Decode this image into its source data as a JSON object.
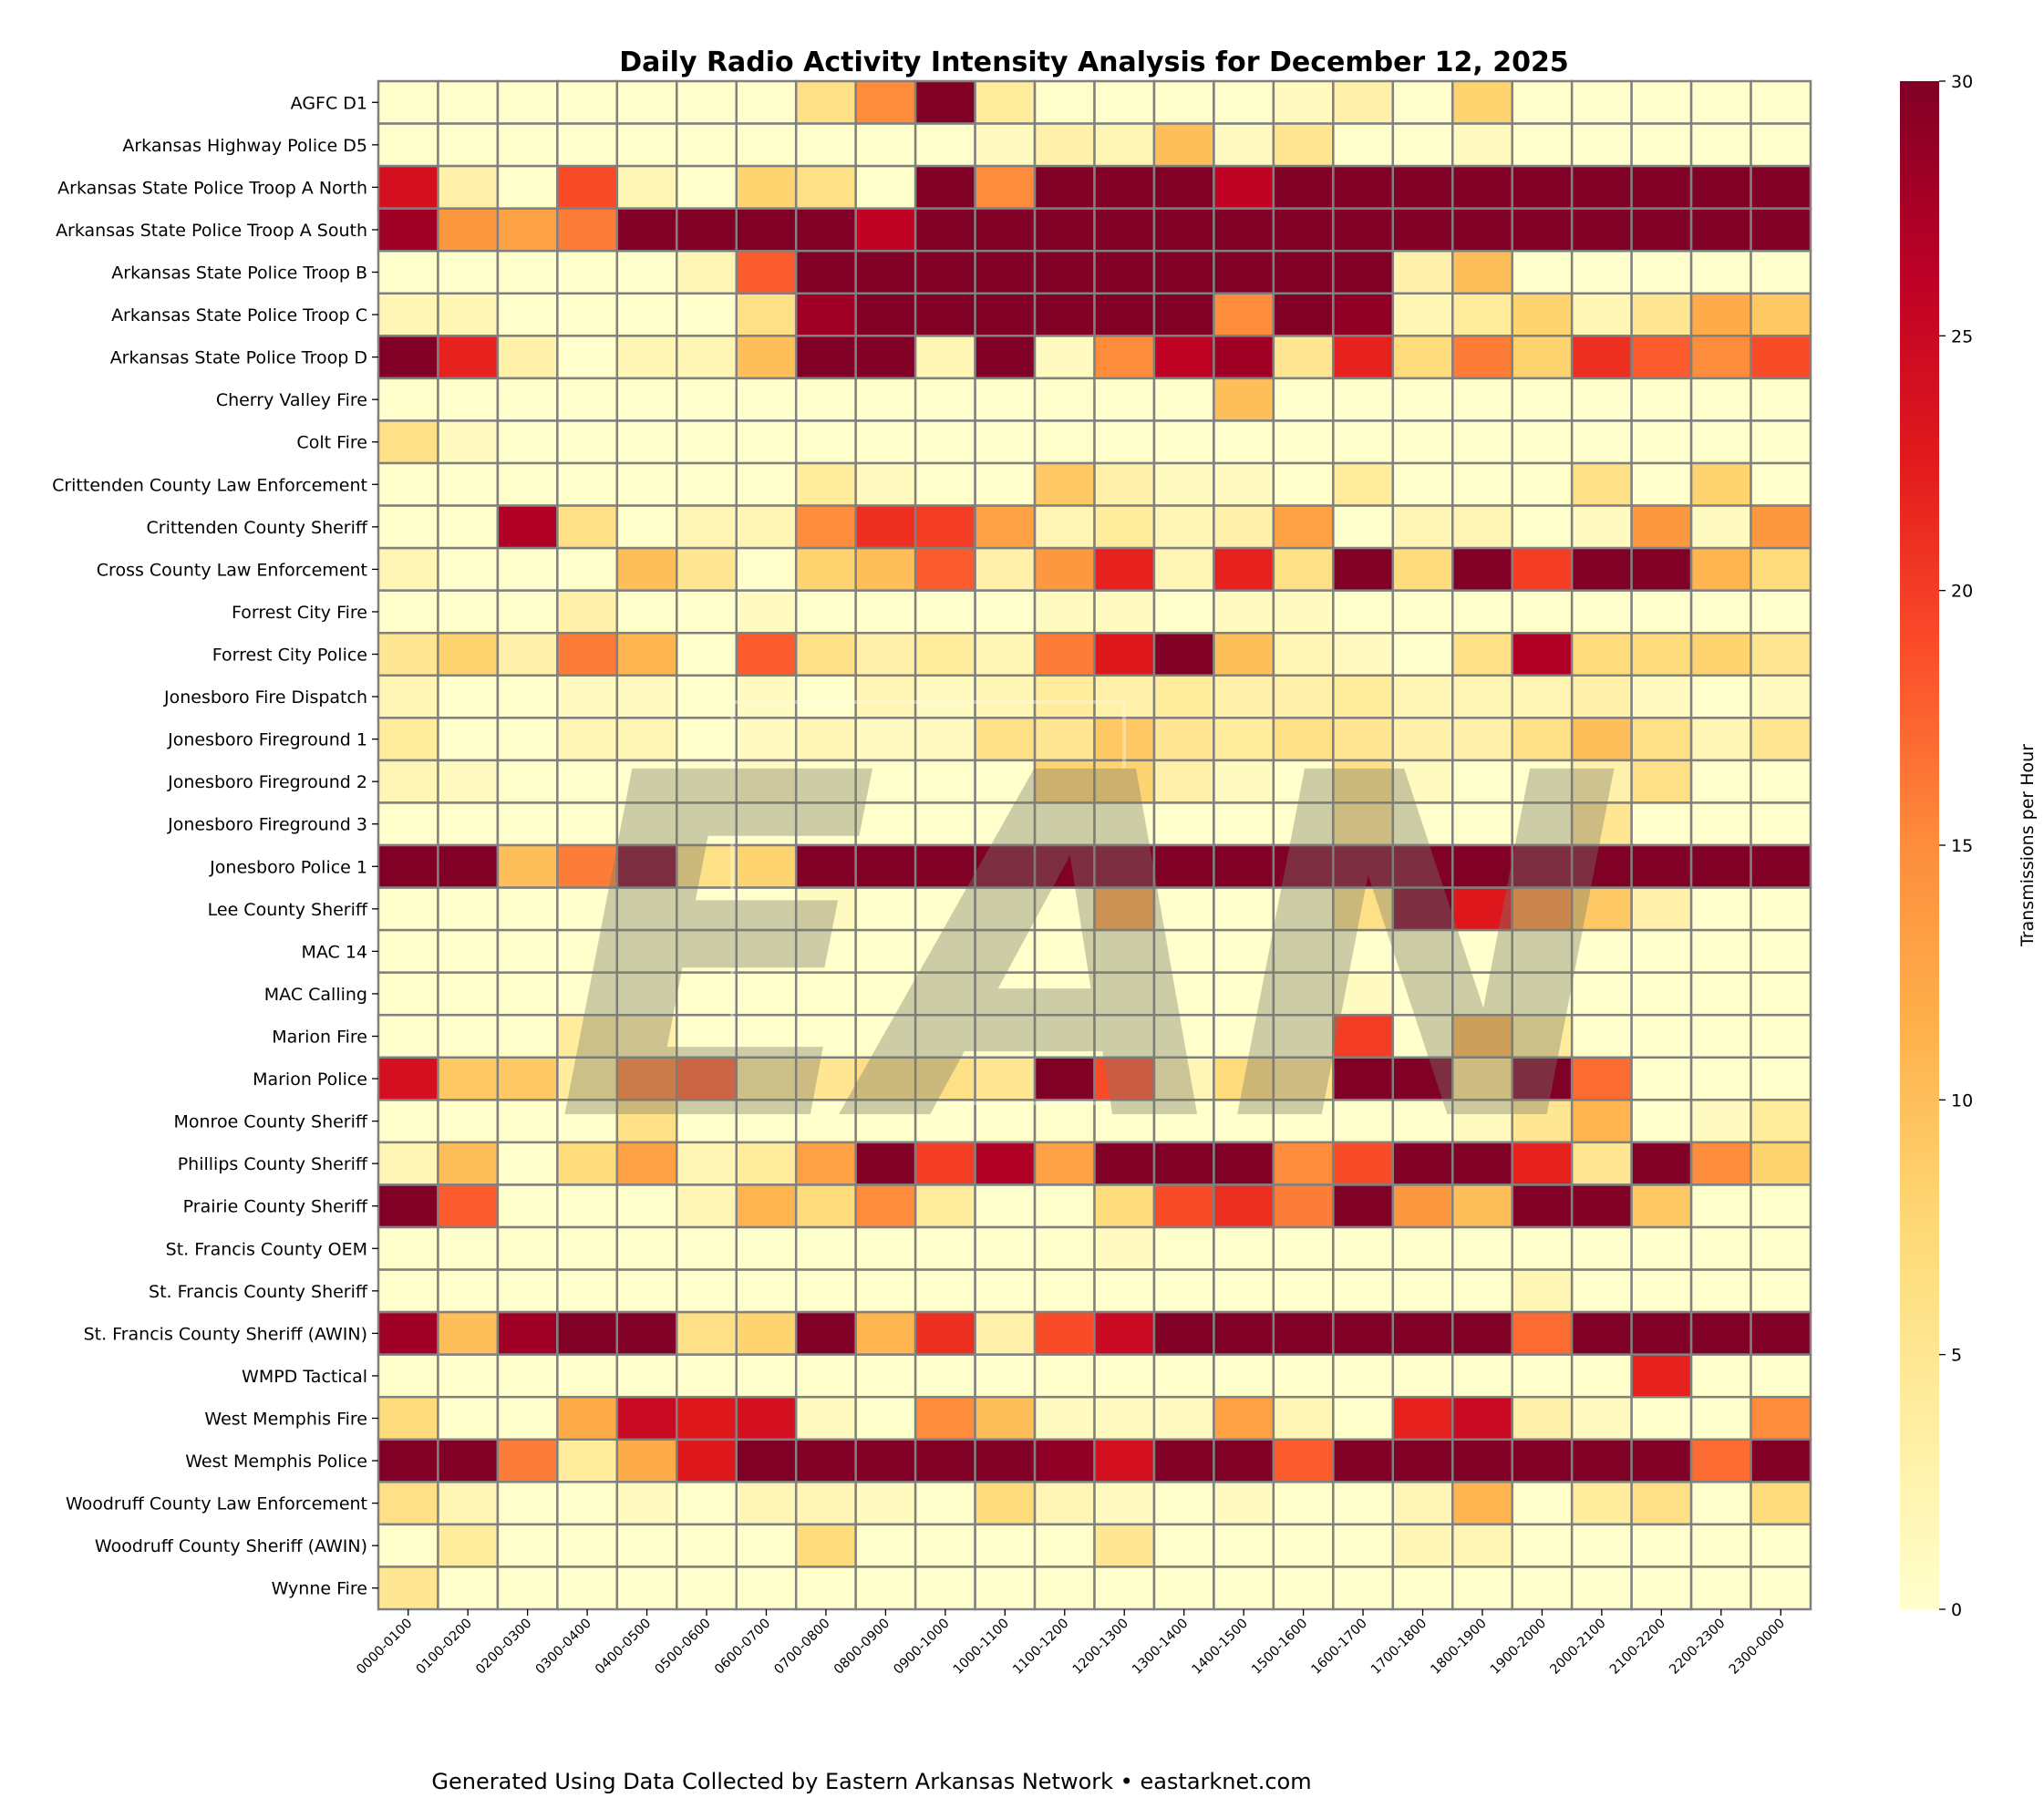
{
  "chart_data": {
    "type": "heatmap",
    "title": "Daily Radio Activity Intensity Analysis for December 12, 2025",
    "xlabel": "",
    "ylabel": "",
    "colorbar_label": "Transmissions per Hour",
    "colorbar_range": [
      0,
      30
    ],
    "colorbar_ticks": [
      "0",
      "5",
      "10",
      "15",
      "20",
      "25",
      "30"
    ],
    "colormap": [
      "#ffffcc",
      "#ffeda0",
      "#fed976",
      "#feb24c",
      "#fd8d3c",
      "#fc4e2a",
      "#e31a1c",
      "#bd0026",
      "#800026"
    ],
    "grid_color": "#808080",
    "x": [
      "0000-0100",
      "0100-0200",
      "0200-0300",
      "0300-0400",
      "0400-0500",
      "0500-0600",
      "0600-0700",
      "0700-0800",
      "0800-0900",
      "0900-1000",
      "1000-1100",
      "1100-1200",
      "1200-1300",
      "1300-1400",
      "1400-1500",
      "1500-1600",
      "1600-1700",
      "1700-1800",
      "1800-1900",
      "1900-2000",
      "2000-2100",
      "2100-2200",
      "2200-2300",
      "2300-0000"
    ],
    "y": [
      "AGFC D1",
      "Arkansas Highway Police D5",
      "Arkansas State Police Troop A North",
      "Arkansas State Police Troop A South",
      "Arkansas State Police Troop B",
      "Arkansas State Police Troop C",
      "Arkansas State Police Troop D",
      "Cherry Valley Fire",
      "Colt Fire",
      "Crittenden County Law Enforcement",
      "Crittenden County Sheriff",
      "Cross County Law Enforcement",
      "Forrest City Fire",
      "Forrest City Police",
      "Jonesboro Fire Dispatch",
      "Jonesboro Fireground 1",
      "Jonesboro Fireground 2",
      "Jonesboro Fireground 3",
      "Jonesboro Police 1",
      "Lee County Sheriff",
      "MAC 14",
      "MAC Calling",
      "Marion Fire",
      "Marion Police",
      "Monroe County Sheriff",
      "Phillips County Sheriff",
      "Prairie County Sheriff",
      "St. Francis County OEM",
      "St. Francis County Sheriff",
      "St. Francis County Sheriff (AWIN)",
      "WMPD Tactical",
      "West Memphis Fire",
      "West Memphis Police",
      "Woodruff County Law Enforcement",
      "Woodruff County Sheriff (AWIN)",
      "Wynne Fire"
    ],
    "values": [
      [
        0,
        0,
        0,
        0,
        0,
        0,
        0,
        6,
        15,
        30,
        4,
        0,
        0,
        0,
        0,
        1,
        3,
        0,
        8,
        0,
        0,
        0,
        0,
        0
      ],
      [
        0,
        0,
        0,
        0,
        0,
        0,
        0,
        0,
        0,
        0,
        1,
        3,
        2,
        10,
        1,
        5,
        0,
        0,
        1,
        0,
        0,
        0,
        0,
        0
      ],
      [
        24,
        3,
        0,
        19,
        2,
        0,
        8,
        6,
        0,
        30,
        15,
        30,
        30,
        30,
        26,
        30,
        30,
        30,
        30,
        30,
        30,
        30,
        30,
        30
      ],
      [
        28,
        14,
        13,
        16,
        30,
        30,
        30,
        30,
        26,
        30,
        30,
        30,
        30,
        30,
        30,
        30,
        30,
        30,
        30,
        30,
        30,
        30,
        30,
        30
      ],
      [
        0,
        0,
        0,
        0,
        0,
        2,
        18,
        30,
        30,
        30,
        30,
        30,
        30,
        30,
        30,
        30,
        30,
        3,
        10,
        0,
        0,
        0,
        0,
        0
      ],
      [
        2,
        2,
        0,
        0,
        0,
        0,
        6,
        28,
        30,
        30,
        30,
        30,
        30,
        30,
        15,
        30,
        29,
        2,
        4,
        8,
        2,
        5,
        12,
        9
      ],
      [
        30,
        22,
        3,
        0,
        2,
        2,
        10,
        30,
        30,
        2,
        30,
        1,
        15,
        26,
        28,
        5,
        22,
        7,
        16,
        8,
        21,
        18,
        15,
        19
      ],
      [
        0,
        0,
        0,
        0,
        0,
        0,
        0,
        0,
        0,
        0,
        0,
        0,
        0,
        0,
        10,
        0,
        0,
        0,
        0,
        0,
        0,
        0,
        0,
        0
      ],
      [
        6,
        1,
        0,
        0,
        0,
        0,
        0,
        0,
        0,
        0,
        0,
        0,
        0,
        0,
        0,
        0,
        0,
        0,
        0,
        0,
        0,
        0,
        0,
        0
      ],
      [
        0,
        0,
        0,
        0,
        0,
        0,
        0,
        4,
        1,
        0,
        0,
        9,
        3,
        1,
        1,
        0,
        4,
        0,
        0,
        0,
        6,
        0,
        8,
        0
      ],
      [
        0,
        0,
        27,
        6,
        0,
        2,
        2,
        15,
        21,
        20,
        13,
        2,
        4,
        2,
        3,
        13,
        0,
        2,
        2,
        0,
        1,
        14,
        1,
        14
      ],
      [
        2,
        0,
        0,
        0,
        10,
        5,
        0,
        8,
        10,
        18,
        3,
        14,
        22,
        2,
        22,
        6,
        30,
        7,
        30,
        20,
        30,
        30,
        11,
        7
      ],
      [
        0,
        0,
        0,
        3,
        0,
        0,
        1,
        0,
        0,
        0,
        0,
        1,
        1,
        0,
        1,
        1,
        0,
        0,
        0,
        0,
        0,
        0,
        0,
        0
      ],
      [
        5,
        8,
        3,
        16,
        11,
        0,
        18,
        6,
        3,
        4,
        2,
        16,
        23,
        30,
        10,
        2,
        1,
        0,
        6,
        27,
        7,
        7,
        8,
        5
      ],
      [
        2,
        0,
        0,
        1,
        1,
        0,
        1,
        0,
        2,
        1,
        2,
        4,
        3,
        4,
        3,
        3,
        4,
        2,
        2,
        2,
        3,
        1,
        0,
        1
      ],
      [
        4,
        0,
        0,
        2,
        2,
        0,
        1,
        2,
        1,
        1,
        6,
        5,
        9,
        5,
        4,
        6,
        5,
        3,
        3,
        6,
        10,
        6,
        2,
        5
      ],
      [
        2,
        1,
        0,
        0,
        0,
        0,
        1,
        0,
        0,
        0,
        0,
        8,
        8,
        3,
        1,
        0,
        6,
        1,
        0,
        0,
        3,
        6,
        0,
        0
      ],
      [
        0,
        0,
        0,
        0,
        0,
        0,
        0,
        0,
        0,
        0,
        0,
        0,
        0,
        0,
        0,
        0,
        5,
        0,
        0,
        0,
        5,
        0,
        0,
        0
      ],
      [
        30,
        30,
        10,
        16,
        30,
        6,
        8,
        30,
        30,
        30,
        30,
        30,
        30,
        30,
        30,
        30,
        30,
        30,
        30,
        30,
        30,
        30,
        30,
        30
      ],
      [
        0,
        0,
        0,
        0,
        0,
        0,
        0,
        1,
        0,
        0,
        0,
        0,
        13,
        0,
        0,
        0,
        6,
        30,
        23,
        15,
        9,
        3,
        0,
        0
      ],
      [
        0,
        0,
        0,
        0,
        0,
        0,
        0,
        0,
        0,
        0,
        0,
        0,
        0,
        0,
        0,
        0,
        0,
        0,
        0,
        0,
        0,
        0,
        0,
        0
      ],
      [
        0,
        0,
        0,
        0,
        0,
        0,
        0,
        0,
        0,
        0,
        0,
        0,
        0,
        0,
        0,
        0,
        1,
        0,
        0,
        0,
        0,
        0,
        0,
        0
      ],
      [
        0,
        0,
        0,
        4,
        3,
        0,
        0,
        0,
        0,
        0,
        0,
        0,
        0,
        0,
        0,
        0,
        20,
        0,
        11,
        4,
        0,
        0,
        0,
        0
      ],
      [
        24,
        9,
        9,
        4,
        16,
        18,
        4,
        5,
        6,
        6,
        5,
        30,
        19,
        2,
        7,
        5,
        30,
        30,
        5,
        30,
        17,
        0,
        0,
        0
      ],
      [
        0,
        0,
        0,
        0,
        6,
        0,
        0,
        0,
        0,
        0,
        0,
        0,
        0,
        0,
        0,
        0,
        0,
        0,
        1,
        5,
        11,
        0,
        1,
        4
      ],
      [
        2,
        10,
        0,
        7,
        13,
        2,
        4,
        13,
        30,
        20,
        27,
        13,
        30,
        30,
        30,
        15,
        19,
        30,
        30,
        22,
        5,
        30,
        15,
        8
      ],
      [
        30,
        18,
        0,
        0,
        0,
        2,
        11,
        7,
        15,
        4,
        0,
        0,
        7,
        19,
        21,
        16,
        30,
        14,
        10,
        30,
        30,
        9,
        0,
        0
      ],
      [
        0,
        0,
        0,
        0,
        0,
        0,
        0,
        0,
        0,
        0,
        0,
        0,
        1,
        0,
        0,
        0,
        0,
        0,
        0,
        0,
        0,
        0,
        0,
        0
      ],
      [
        0,
        0,
        0,
        0,
        0,
        0,
        0,
        0,
        0,
        0,
        0,
        0,
        0,
        0,
        0,
        0,
        0,
        0,
        0,
        2,
        0,
        0,
        0,
        0
      ],
      [
        28,
        10,
        28,
        30,
        30,
        6,
        8,
        30,
        11,
        21,
        3,
        19,
        25,
        30,
        30,
        30,
        30,
        30,
        30,
        17,
        30,
        30,
        30,
        30
      ],
      [
        0,
        0,
        0,
        0,
        0,
        0,
        0,
        0,
        0,
        0,
        0,
        0,
        0,
        0,
        0,
        0,
        0,
        0,
        0,
        0,
        0,
        22,
        0,
        0
      ],
      [
        7,
        0,
        0,
        12,
        25,
        23,
        24,
        1,
        0,
        15,
        10,
        1,
        1,
        1,
        13,
        2,
        0,
        22,
        25,
        3,
        1,
        0,
        0,
        15
      ],
      [
        30,
        30,
        16,
        4,
        12,
        23,
        30,
        30,
        30,
        30,
        30,
        29,
        24,
        30,
        30,
        18,
        30,
        30,
        30,
        30,
        30,
        30,
        17,
        30
      ],
      [
        6,
        2,
        0,
        0,
        1,
        0,
        2,
        2,
        1,
        0,
        7,
        2,
        1,
        0,
        1,
        0,
        0,
        2,
        11,
        0,
        4,
        6,
        0,
        7
      ],
      [
        0,
        4,
        0,
        0,
        0,
        0,
        0,
        7,
        0,
        0,
        0,
        0,
        5,
        0,
        0,
        0,
        0,
        2,
        2,
        0,
        0,
        0,
        0,
        0
      ],
      [
        5,
        0,
        0,
        0,
        0,
        0,
        0,
        0,
        0,
        0,
        0,
        0,
        0,
        0,
        0,
        0,
        0,
        0,
        0,
        0,
        0,
        0,
        0,
        0
      ]
    ]
  },
  "watermark": "EAN",
  "footer": "Generated Using Data Collected by Eastern Arkansas Network • eastarknet.com"
}
